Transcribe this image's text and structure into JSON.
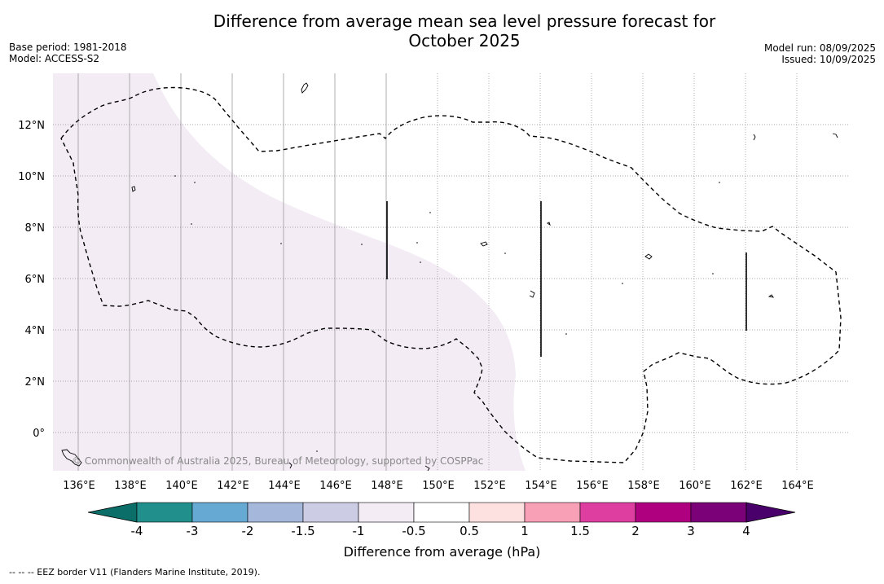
{
  "title": "Difference from average mean sea level pressure forecast for October 2025",
  "meta_left": {
    "base_period": "Base period: 1981-2018",
    "model": "Model: ACCESS-S2"
  },
  "meta_right": {
    "model_run": "Model run: 08/09/2025",
    "issued": "Issued: 10/09/2025"
  },
  "map": {
    "lon_labels": [
      "136°E",
      "138°E",
      "140°E",
      "142°E",
      "144°E",
      "146°E",
      "148°E",
      "150°E",
      "152°E",
      "154°E",
      "156°E",
      "158°E",
      "160°E",
      "162°E",
      "164°E"
    ],
    "lat_labels": [
      "12°N",
      "10°N",
      "8°N",
      "6°N",
      "4°N",
      "2°N",
      "0°"
    ],
    "copyright": "© Commonwealth of Australia 2025, Bureau of Meteorology, supported by COSPPac",
    "anomaly_fill": "#f3ecf5",
    "eez_line_color": "#000000"
  },
  "colorbar": {
    "title": "Difference from average (hPa)",
    "tick_labels": [
      "-4",
      "-3",
      "-2",
      "-1.5",
      "-1",
      "-0.5",
      "0.5",
      "1",
      "1.5",
      "2",
      "3",
      "4"
    ],
    "colors": [
      "#0c6e68",
      "#21908d",
      "#66a9d3",
      "#a5b8dc",
      "#cccde4",
      "#f3ecf5",
      "#ffffff",
      "#fde1e0",
      "#f8a1b6",
      "#dd3ea0",
      "#ae007f",
      "#7a0177",
      "#49006a"
    ]
  },
  "footnote": "--  --  -- EEZ border V11 (Flanders Marine Institute, 2019)."
}
